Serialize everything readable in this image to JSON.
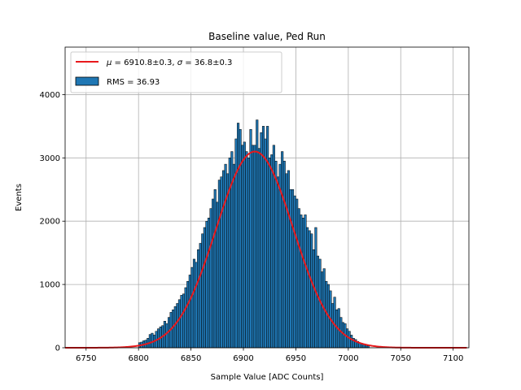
{
  "chart_data": {
    "type": "bar",
    "title": "Baseline value, Ped Run",
    "xlabel": "Sample Value [ADC Counts]",
    "ylabel": "Events",
    "xlim": [
      6730,
      7115
    ],
    "ylim": [
      0,
      4750
    ],
    "xticks": [
      6750,
      6800,
      6850,
      6900,
      6950,
      7000,
      7050,
      7100
    ],
    "yticks": [
      0,
      1000,
      2000,
      3000,
      4000
    ],
    "grid": true,
    "legend_position": "top-left",
    "histogram": {
      "name": "RMS = 36.93",
      "color": "#1f77b4",
      "edgecolor": "#000000",
      "bin_width": 2,
      "bin_starts": [
        6800,
        6802,
        6804,
        6806,
        6808,
        6810,
        6812,
        6814,
        6816,
        6818,
        6820,
        6822,
        6824,
        6826,
        6828,
        6830,
        6832,
        6834,
        6836,
        6838,
        6840,
        6842,
        6844,
        6846,
        6848,
        6850,
        6852,
        6854,
        6856,
        6858,
        6860,
        6862,
        6864,
        6866,
        6868,
        6870,
        6872,
        6874,
        6876,
        6878,
        6880,
        6882,
        6884,
        6886,
        6888,
        6890,
        6892,
        6894,
        6896,
        6898,
        6900,
        6902,
        6904,
        6906,
        6908,
        6910,
        6912,
        6914,
        6916,
        6918,
        6920,
        6922,
        6924,
        6926,
        6928,
        6930,
        6932,
        6934,
        6936,
        6938,
        6940,
        6942,
        6944,
        6946,
        6948,
        6950,
        6952,
        6954,
        6956,
        6958,
        6960,
        6962,
        6964,
        6966,
        6968,
        6970,
        6972,
        6974,
        6976,
        6978,
        6980,
        6982,
        6984,
        6986,
        6988,
        6990,
        6992,
        6994,
        6996,
        6998,
        7000,
        7002,
        7004,
        7006,
        7008,
        7010,
        7012,
        7014,
        7016,
        7018
      ],
      "counts": [
        80,
        90,
        110,
        120,
        150,
        210,
        230,
        200,
        260,
        300,
        330,
        350,
        420,
        380,
        480,
        560,
        600,
        650,
        700,
        760,
        830,
        850,
        950,
        1050,
        1150,
        1270,
        1400,
        1350,
        1550,
        1650,
        1800,
        1900,
        2000,
        2050,
        2200,
        2350,
        2500,
        2300,
        2650,
        2700,
        2800,
        2900,
        2750,
        3000,
        3100,
        2900,
        3300,
        3550,
        3450,
        3200,
        3250,
        3100,
        3000,
        3450,
        3200,
        3200,
        3600,
        3150,
        3400,
        3500,
        3300,
        3500,
        3000,
        3050,
        3200,
        2950,
        2700,
        2900,
        3100,
        2950,
        2750,
        2800,
        2500,
        2500,
        2400,
        2350,
        2200,
        2100,
        2050,
        2100,
        1900,
        1850,
        1800,
        1550,
        1900,
        1450,
        1400,
        1200,
        1250,
        1050,
        1000,
        900,
        700,
        800,
        600,
        620,
        480,
        400,
        380,
        300,
        260,
        200,
        150,
        130,
        100,
        80,
        70,
        60,
        40,
        30
      ]
    },
    "fit": {
      "name": "$\\mu=6910.8{\\pm}0.3$, $\\sigma=36.8{\\pm}0.3$",
      "label_mu": "μ",
      "label_mu_value": " = 6910.8±0.3, ",
      "label_sigma": "σ",
      "label_sigma_value": " = 36.8±0.3",
      "color": "#e8191c",
      "mu": 6910.8,
      "sigma": 36.8,
      "amplitude": 3100,
      "x_range": [
        6730,
        7113
      ]
    }
  }
}
